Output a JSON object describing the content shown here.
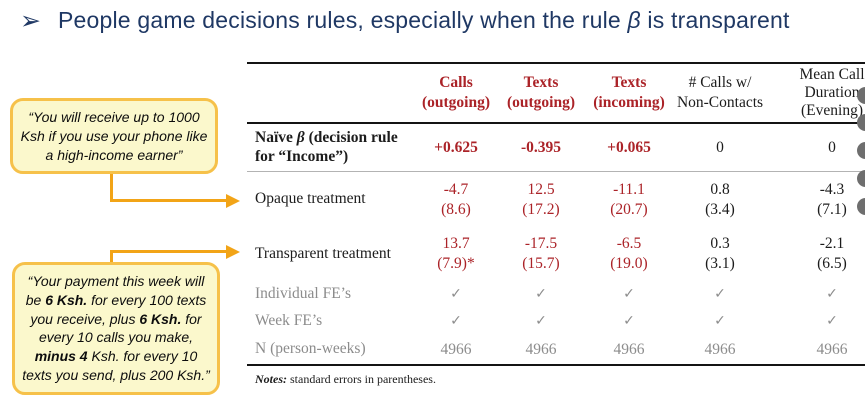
{
  "title": {
    "bullet": "➢",
    "segments": [
      {
        "t": "People game decisions rules, especially when the rule "
      },
      {
        "t": "β",
        "i": true
      },
      {
        "t": " is transparent"
      }
    ]
  },
  "callout1": {
    "segments": [
      {
        "t": "“You will receive up to 1000 Ksh if you use your phone like a high-income earner”"
      }
    ]
  },
  "callout2": {
    "segments": [
      {
        "t": "“Your payment this week will be "
      },
      {
        "t": "6 Ksh.",
        "b": true
      },
      {
        "t": " for every 100 texts you receive, plus "
      },
      {
        "t": "6 Ksh.",
        "b": true
      },
      {
        "t": " for every 10 calls you make, "
      },
      {
        "t": "minus 4",
        "b": true
      },
      {
        "t": " Ksh. for every 10 texts you send, plus 200 Ksh.”"
      }
    ]
  },
  "table": {
    "headers": [
      {
        "lines": [
          "Calls",
          "(outgoing)"
        ]
      },
      {
        "lines": [
          "Texts",
          "(outgoing)"
        ]
      },
      {
        "lines": [
          "Texts",
          "(incoming)"
        ]
      },
      {
        "lines": [
          "# Calls w/",
          "Non-Contacts"
        ]
      },
      {
        "lines": [
          "Mean Call",
          "Duration",
          "(Evening)"
        ]
      }
    ],
    "naive": {
      "label_rich": [
        {
          "t": "Naïve ",
          "b": true
        },
        {
          "t": "β",
          "b": true,
          "i": true
        },
        {
          "t": " (decision rule for “Income”)",
          "b": true
        }
      ],
      "values": [
        "+0.625",
        "-0.395",
        "+0.065",
        "0",
        "0"
      ]
    },
    "opaque": {
      "label": "Opaque treatment",
      "cells": [
        {
          "main": "-4.7",
          "se": "(8.6)"
        },
        {
          "main": "12.5",
          "se": "(17.2)"
        },
        {
          "main": "-11.1",
          "se": "(20.7)"
        },
        {
          "main": "0.8",
          "se": "(3.4)"
        },
        {
          "main": "-4.3",
          "se": "(7.1)"
        }
      ]
    },
    "transparent": {
      "label": "Transparent treatment",
      "cells": [
        {
          "main": "13.7",
          "se": "(7.9)*"
        },
        {
          "main": "-17.5",
          "se": "(15.7)"
        },
        {
          "main": "-6.5",
          "se": "(19.0)"
        },
        {
          "main": "0.3",
          "se": "(3.1)"
        },
        {
          "main": "-2.1",
          "se": "(6.5)"
        }
      ]
    },
    "fe_individual": {
      "label": "Individual FE’s",
      "checks": [
        "✓",
        "✓",
        "✓",
        "✓",
        "✓"
      ]
    },
    "fe_week": {
      "label": "Week FE’s",
      "checks": [
        "✓",
        "✓",
        "✓",
        "✓",
        "✓"
      ]
    },
    "n_row": {
      "label": "N (person-weeks)",
      "values": [
        "4966",
        "4966",
        "4966",
        "4966",
        "4966"
      ]
    },
    "notes": {
      "label": "Notes:",
      "text": " standard errors in parentheses."
    }
  },
  "colors": {
    "title_navy": "#1f3864",
    "accent_red": "#ab2328",
    "gold_arrow": "#f2a417",
    "callout_border": "#f6c14a",
    "callout_fill": "#fbf8cc",
    "muted_gray": "#8c8c8c"
  }
}
